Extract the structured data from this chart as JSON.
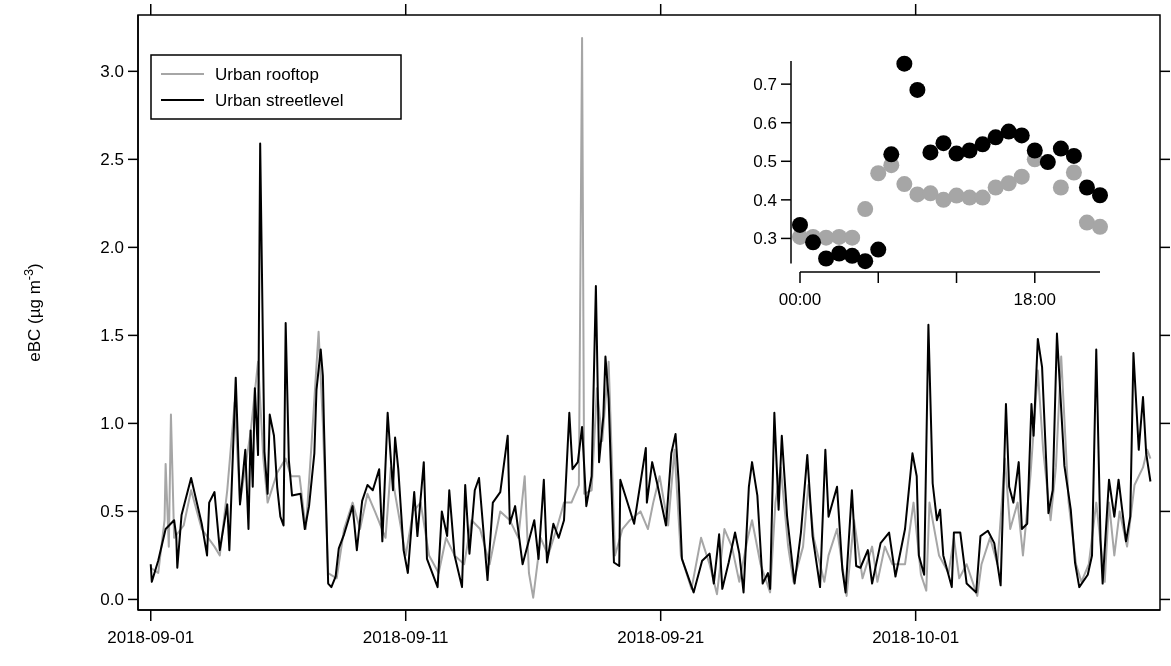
{
  "chart_data": [
    {
      "type": "line",
      "ylabel": "eBC (µg m$^{-3}$)",
      "legend": "top left",
      "xlim": [
        "2018-08-31T12:00",
        "2018-10-10T14:00"
      ],
      "xticks": [
        "2018-09-01",
        "2018-09-11",
        "2018-09-21",
        "2018-10-01"
      ],
      "ylim": [
        -0.06,
        3.32
      ],
      "yticks": [
        {
          "value": 0,
          "label": "0.0"
        },
        0.5,
        {
          "value": 1,
          "label": "1.0"
        },
        1.5,
        {
          "value": 2,
          "label": "2.0"
        },
        2.5,
        {
          "value": 3,
          "label": "3.0"
        }
      ],
      "series": [
        {
          "name": "Urban rooftop",
          "color": "#a6a6a6",
          "x": [
            "2018-09-01T00:00",
            "2018-09-01T07:00",
            "2018-09-01T13:00",
            "2018-09-01T14:00",
            "2018-09-01T17:00",
            "2018-09-01T19:00",
            "2018-09-01T22:00",
            "2018-09-02T07:00",
            "2018-09-02T14:00",
            "2018-09-03T00:00",
            "2018-09-03T12:00",
            "2018-09-03T17:00",
            "2018-09-04T00:00",
            "2018-09-04T07:00",
            "2018-09-04T12:00",
            "2018-09-04T22:00",
            "2018-09-05T05:00",
            "2018-09-05T10:00",
            "2018-09-05T14:00",
            "2018-09-05T23:00",
            "2018-09-06T07:00",
            "2018-09-06T12:00",
            "2018-09-06T20:00",
            "2018-09-07T02:00",
            "2018-09-07T07:00",
            "2018-09-07T14:00",
            "2018-09-07T18:00",
            "2018-09-07T23:00",
            "2018-09-08T07:00",
            "2018-09-08T14:00",
            "2018-09-08T22:00",
            "2018-09-09T05:00",
            "2018-09-09T12:00",
            "2018-09-09T19:00",
            "2018-09-10T05:00",
            "2018-09-10T10:00",
            "2018-09-10T14:00",
            "2018-09-11T00:00",
            "2018-09-11T07:00",
            "2018-09-11T14:00",
            "2018-09-11T22:00",
            "2018-09-12T07:00",
            "2018-09-12T14:00",
            "2018-09-12T22:00",
            "2018-09-13T07:00",
            "2018-09-13T14:00",
            "2018-09-13T22:00",
            "2018-09-14T07:00",
            "2018-09-14T17:00",
            "2018-09-15T02:00",
            "2018-09-15T10:00",
            "2018-09-15T16:00",
            "2018-09-15T20:00",
            "2018-09-16T00:00",
            "2018-09-16T07:00",
            "2018-09-16T14:00",
            "2018-09-16T22:00",
            "2018-09-17T05:00",
            "2018-09-17T12:00",
            "2018-09-17T19:00",
            "2018-09-17T22:00",
            "2018-09-18T00:00",
            "2018-09-18T07:00",
            "2018-09-18T12:00",
            "2018-09-18T17:00",
            "2018-09-18T23:00",
            "2018-09-19T05:00",
            "2018-09-19T12:00",
            "2018-09-19T19:00",
            "2018-09-20T05:00",
            "2018-09-20T12:00",
            "2018-09-20T17:00",
            "2018-09-20T23:00",
            "2018-09-21T07:00",
            "2018-09-21T13:00",
            "2018-09-21T19:00",
            "2018-09-22T05:00",
            "2018-09-22T14:00",
            "2018-09-22T22:00",
            "2018-09-23T05:00",
            "2018-09-23T12:00",
            "2018-09-23T19:00",
            "2018-09-24T02:00",
            "2018-09-24T10:00",
            "2018-09-24T14:00",
            "2018-09-24T22:00",
            "2018-09-25T07:00",
            "2018-09-25T12:00",
            "2018-09-25T17:00",
            "2018-09-26T00:00",
            "2018-09-26T05:00",
            "2018-09-26T14:00",
            "2018-09-26T19:00",
            "2018-09-27T00:00",
            "2018-09-27T10:00",
            "2018-09-27T14:00",
            "2018-09-27T22:00",
            "2018-09-28T07:00",
            "2018-09-28T14:00",
            "2018-09-28T22:00",
            "2018-09-29T07:00",
            "2018-09-29T12:00",
            "2018-09-29T19:00",
            "2018-09-30T02:00",
            "2018-09-30T14:00",
            "2018-09-30T22:00",
            "2018-10-01T05:00",
            "2018-10-01T10:00",
            "2018-10-01T13:00",
            "2018-10-01T22:00",
            "2018-10-02T07:00",
            "2018-10-02T12:00",
            "2018-10-02T17:00",
            "2018-10-03T00:00",
            "2018-10-03T10:00",
            "2018-10-03T14:00",
            "2018-10-03T22:00",
            "2018-10-04T05:00",
            "2018-10-04T12:00",
            "2018-10-04T17:00",
            "2018-10-05T00:00",
            "2018-10-05T05:00",
            "2018-10-05T12:00",
            "2018-10-05T19:00",
            "2018-10-06T00:00",
            "2018-10-06T07:00",
            "2018-10-06T12:00",
            "2018-10-06T17:00",
            "2018-10-07T00:00",
            "2018-10-07T07:00",
            "2018-10-07T12:00",
            "2018-10-07T19:00",
            "2018-10-08T02:00",
            "2018-10-08T10:00",
            "2018-10-08T14:00",
            "2018-10-08T19:00",
            "2018-10-09T00:00",
            "2018-10-09T07:00",
            "2018-10-09T14:00",
            "2018-10-09T22:00",
            "2018-10-10T02:00",
            "2018-10-10T05:00"
          ],
          "values": [
            0.18,
            0.15,
            0.45,
            0.77,
            0.3,
            1.05,
            0.35,
            0.42,
            0.62,
            0.4,
            0.3,
            0.25,
            0.62,
            1.12,
            0.55,
            0.95,
            1.35,
            0.8,
            0.55,
            0.72,
            0.8,
            0.7,
            0.7,
            0.4,
            0.85,
            1.52,
            1.0,
            0.15,
            0.12,
            0.4,
            0.55,
            0.4,
            0.6,
            0.5,
            0.35,
            0.75,
            0.6,
            0.25,
            0.5,
            0.55,
            0.25,
            0.15,
            0.35,
            0.25,
            0.2,
            0.45,
            0.4,
            0.2,
            0.5,
            0.45,
            0.35,
            0.7,
            0.15,
            0.01,
            0.35,
            0.25,
            0.4,
            0.55,
            0.55,
            0.65,
            3.19,
            0.6,
            0.62,
            1.2,
            0.9,
            1.35,
            0.25,
            0.4,
            0.45,
            0.5,
            0.4,
            0.55,
            0.7,
            0.42,
            0.85,
            0.25,
            0.06,
            0.35,
            0.2,
            0.03,
            0.4,
            0.3,
            0.1,
            0.35,
            0.45,
            0.2,
            0.04,
            0.55,
            0.75,
            0.3,
            0.1,
            0.3,
            0.65,
            0.35,
            0.1,
            0.25,
            0.4,
            0.02,
            0.45,
            0.12,
            0.3,
            0.1,
            0.3,
            0.2,
            0.2,
            0.55,
            0.14,
            0.05,
            0.55,
            0.25,
            0.15,
            0.35,
            0.12,
            0.2,
            0.02,
            0.2,
            0.35,
            0.2,
            0.8,
            0.4,
            0.55,
            0.25,
            0.7,
            1.3,
            0.85,
            0.45,
            0.75,
            1.38,
            0.55,
            0.2,
            0.1,
            0.2,
            0.55,
            0.1,
            0.55,
            0.25,
            0.5,
            0.3,
            0.65,
            0.75,
            0.85,
            0.8
          ]
        },
        {
          "name": "Urban streetlevel",
          "color": "#000000",
          "x": [
            "2018-09-01T00:00",
            "2018-09-01T01:00",
            "2018-09-01T07:00",
            "2018-09-01T14:00",
            "2018-09-01T22:00",
            "2018-09-02T00:00",
            "2018-09-02T01:00",
            "2018-09-02T05:00",
            "2018-09-02T14:00",
            "2018-09-03T00:00",
            "2018-09-03T05:00",
            "2018-09-03T07:00",
            "2018-09-03T12:00",
            "2018-09-03T17:00",
            "2018-09-04T00:00",
            "2018-09-04T02:00",
            "2018-09-04T08:00",
            "2018-09-04T12:00",
            "2018-09-04T17:00",
            "2018-09-04T20:00",
            "2018-09-04T22:00",
            "2018-09-05T00:00",
            "2018-09-05T02:00",
            "2018-09-05T05:00",
            "2018-09-05T07:00",
            "2018-09-05T11:00",
            "2018-09-05T14:00",
            "2018-09-05T16:00",
            "2018-09-05T20:00",
            "2018-09-05T23:00",
            "2018-09-06T02:00",
            "2018-09-06T05:00",
            "2018-09-06T07:00",
            "2018-09-06T10:00",
            "2018-09-06T13:00",
            "2018-09-06T21:00",
            "2018-09-07T01:00",
            "2018-09-07T05:00",
            "2018-09-07T10:00",
            "2018-09-07T12:00",
            "2018-09-07T16:00",
            "2018-09-07T18:00",
            "2018-09-07T19:00",
            "2018-09-07T23:00",
            "2018-09-08T02:00",
            "2018-09-08T06:00",
            "2018-09-08T09:00",
            "2018-09-08T14:00",
            "2018-09-08T22:00",
            "2018-09-09T02:00",
            "2018-09-09T07:00",
            "2018-09-09T12:00",
            "2018-09-09T17:00",
            "2018-09-09T23:00",
            "2018-09-10T02:00",
            "2018-09-10T07:00",
            "2018-09-10T12:00",
            "2018-09-10T14:00",
            "2018-09-10T17:00",
            "2018-09-10T22:00",
            "2018-09-11T02:00",
            "2018-09-11T08:00",
            "2018-09-11T11:00",
            "2018-09-11T17:00",
            "2018-09-11T20:00",
            "2018-09-12T06:00",
            "2018-09-12T10:00",
            "2018-09-12T15:00",
            "2018-09-12T17:00",
            "2018-09-12T22:00",
            "2018-09-13T05:00",
            "2018-09-13T08:00",
            "2018-09-13T12:00",
            "2018-09-13T17:00",
            "2018-09-13T21:00",
            "2018-09-14T05:00",
            "2018-09-14T10:00",
            "2018-09-14T17:00",
            "2018-09-15T00:00",
            "2018-09-15T02:00",
            "2018-09-15T07:00",
            "2018-09-15T14:00",
            "2018-09-16T01:00",
            "2018-09-16T05:00",
            "2018-09-16T10:00",
            "2018-09-16T13:00",
            "2018-09-16T19:00",
            "2018-09-17T00:00",
            "2018-09-17T05:00",
            "2018-09-17T10:00",
            "2018-09-17T13:00",
            "2018-09-17T18:00",
            "2018-09-17T22:00",
            "2018-09-18T02:00",
            "2018-09-18T07:00",
            "2018-09-18T11:00",
            "2018-09-18T14:00",
            "2018-09-18T18:00",
            "2018-09-18T20:00",
            "2018-09-18T23:00",
            "2018-09-19T04:00",
            "2018-09-19T09:00",
            "2018-09-19T10:00",
            "2018-09-19T23:00",
            "2018-09-20T10:00",
            "2018-09-20T11:00",
            "2018-09-20T16:00",
            "2018-09-20T21:00",
            "2018-09-21T05:00",
            "2018-09-21T10:00",
            "2018-09-21T14:00",
            "2018-09-21T17:00",
            "2018-09-21T20:00",
            "2018-09-22T07:00",
            "2018-09-22T15:00",
            "2018-09-22T22:00",
            "2018-09-23T02:00",
            "2018-09-23T07:00",
            "2018-09-23T10:00",
            "2018-09-23T16:00",
            "2018-09-23T22:00",
            "2018-09-24T02:00",
            "2018-09-24T06:00",
            "2018-09-24T11:00",
            "2018-09-24T14:00",
            "2018-09-24T19:00",
            "2018-09-25T00:00",
            "2018-09-25T05:00",
            "2018-09-25T07:00",
            "2018-09-25T11:00",
            "2018-09-25T15:00",
            "2018-09-25T18:00",
            "2018-09-25T23:00",
            "2018-09-26T06:00",
            "2018-09-26T12:00",
            "2018-09-26T18:00",
            "2018-09-26T23:00",
            "2018-09-27T06:00",
            "2018-09-27T11:00",
            "2018-09-27T14:00",
            "2018-09-27T22:00",
            "2018-09-28T03:00",
            "2018-09-28T06:00",
            "2018-09-28T12:00",
            "2018-09-28T16:00",
            "2018-09-28T20:00",
            "2018-09-29T03:00",
            "2018-09-29T07:00",
            "2018-09-29T15:00",
            "2018-09-29T23:00",
            "2018-09-30T05:00",
            "2018-09-30T14:00",
            "2018-09-30T21:00",
            "2018-10-01T01:00",
            "2018-10-01T03:00",
            "2018-10-01T08:00",
            "2018-10-01T12:00",
            "2018-10-01T16:00",
            "2018-10-01T20:00",
            "2018-10-01T23:00",
            "2018-10-02T02:00",
            "2018-10-02T10:00",
            "2018-10-02T12:00",
            "2018-10-02T18:00",
            "2018-10-03T00:00",
            "2018-10-03T09:00",
            "2018-10-03T13:00",
            "2018-10-03T20:00",
            "2018-10-04T02:00",
            "2018-10-04T08:00",
            "2018-10-04T13:00",
            "2018-10-04T16:00",
            "2018-10-04T20:00",
            "2018-10-05T01:00",
            "2018-10-05T04:00",
            "2018-10-05T09:00",
            "2018-10-05T13:00",
            "2018-10-05T15:00",
            "2018-10-05T19:00",
            "2018-10-05T23:00",
            "2018-10-06T05:00",
            "2018-10-06T09:00",
            "2018-10-06T13:00",
            "2018-10-06T20:00",
            "2018-10-07T02:00",
            "2018-10-07T06:00",
            "2018-10-07T10:00",
            "2018-10-07T18:00",
            "2018-10-07T22:00",
            "2018-10-08T02:00",
            "2018-10-08T06:00",
            "2018-10-08T08:00",
            "2018-10-08T14:00",
            "2018-10-08T19:00",
            "2018-10-08T23:00",
            "2018-10-09T06:00",
            "2018-10-09T10:00",
            "2018-10-09T13:00",
            "2018-10-09T18:00",
            "2018-10-09T22:00",
            "2018-10-10T01:00",
            "2018-10-10T05:00"
          ],
          "values": [
            0.2,
            0.1,
            0.22,
            0.4,
            0.45,
            0.36,
            0.18,
            0.48,
            0.69,
            0.43,
            0.25,
            0.55,
            0.61,
            0.28,
            0.54,
            0.28,
            1.26,
            0.54,
            0.85,
            0.4,
            0.96,
            0.64,
            1.2,
            0.82,
            2.59,
            0.84,
            0.6,
            1.05,
            0.93,
            0.64,
            0.47,
            0.42,
            1.57,
            0.79,
            0.59,
            0.6,
            0.4,
            0.53,
            0.83,
            1.19,
            1.42,
            1.27,
            1.0,
            0.09,
            0.07,
            0.13,
            0.29,
            0.37,
            0.53,
            0.28,
            0.56,
            0.65,
            0.62,
            0.74,
            0.33,
            1.06,
            0.62,
            0.92,
            0.74,
            0.28,
            0.15,
            0.61,
            0.36,
            0.78,
            0.23,
            0.07,
            0.5,
            0.36,
            0.62,
            0.25,
            0.07,
            0.65,
            0.26,
            0.62,
            0.69,
            0.11,
            0.55,
            0.61,
            0.93,
            0.43,
            0.53,
            0.2,
            0.45,
            0.23,
            0.68,
            0.21,
            0.43,
            0.35,
            0.45,
            1.06,
            0.74,
            0.78,
            0.98,
            0.53,
            0.7,
            1.78,
            0.78,
            1.04,
            1.38,
            1.14,
            0.21,
            0.19,
            0.68,
            0.43,
            0.86,
            0.55,
            0.78,
            0.65,
            0.42,
            0.83,
            0.94,
            0.66,
            0.23,
            0.04,
            0.22,
            0.26,
            0.09,
            0.37,
            0.06,
            0.21,
            0.38,
            0.26,
            0.04,
            0.64,
            0.78,
            0.59,
            0.09,
            0.15,
            0.06,
            1.06,
            0.51,
            0.93,
            0.47,
            0.09,
            0.38,
            0.82,
            0.36,
            0.07,
            0.85,
            0.47,
            0.64,
            0.17,
            0.04,
            0.62,
            0.19,
            0.18,
            0.28,
            0.09,
            0.32,
            0.38,
            0.13,
            0.4,
            0.83,
            0.7,
            0.25,
            0.14,
            1.56,
            0.66,
            0.45,
            0.51,
            0.25,
            0.07,
            0.38,
            0.38,
            0.09,
            0.04,
            0.36,
            0.39,
            0.32,
            0.08,
            1.11,
            0.64,
            0.55,
            0.78,
            0.4,
            0.43,
            1.11,
            0.93,
            1.48,
            1.32,
            0.49,
            0.62,
            1.51,
            0.76,
            0.51,
            0.21,
            0.07,
            0.14,
            0.25,
            1.42,
            0.34,
            0.09,
            0.68,
            0.47,
            0.68,
            0.33,
            0.47,
            1.4,
            0.85,
            1.15,
            0.83,
            0.67
          ]
        }
      ]
    },
    {
      "type": "scatter",
      "marker": "circle",
      "x": [
        0,
        1,
        2,
        3,
        4,
        5,
        6,
        7,
        8,
        9,
        10,
        11,
        12,
        13,
        14,
        15,
        16,
        17,
        18,
        19,
        20,
        21,
        22,
        23
      ],
      "xlim": [
        0,
        23
      ],
      "xticks": [
        {
          "value": 0,
          "label": "00:00"
        },
        {
          "value": 6,
          "label": null
        },
        {
          "value": 12,
          "label": null
        },
        {
          "value": 18,
          "label": "18:00"
        }
      ],
      "ylim": [
        0.235,
        0.76
      ],
      "yticks": [
        0.3,
        0.4,
        0.5,
        0.6,
        0.7
      ],
      "series": [
        {
          "color": "#a6a6a6",
          "values": [
            0.304,
            0.304,
            0.302,
            0.304,
            0.302,
            0.376,
            0.469,
            0.49,
            0.441,
            0.414,
            0.417,
            0.4,
            0.411,
            0.406,
            0.406,
            0.432,
            0.443,
            0.46,
            0.505,
            null,
            0.432,
            0.471,
            0.341,
            0.33
          ]
        },
        {
          "color": "#000000",
          "values": [
            0.335,
            0.29,
            0.248,
            0.261,
            0.255,
            0.241,
            0.271,
            0.518,
            0.753,
            0.685,
            0.523,
            0.547,
            0.52,
            0.528,
            0.544,
            0.562,
            0.577,
            0.567,
            0.528,
            0.498,
            0.533,
            0.514,
            0.432,
            0.412
          ]
        }
      ]
    }
  ]
}
